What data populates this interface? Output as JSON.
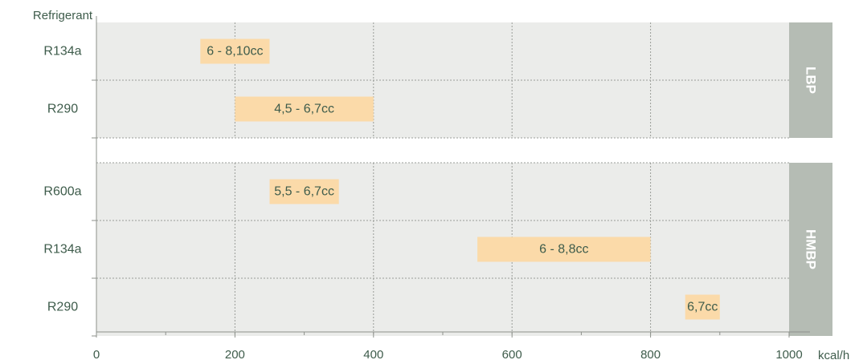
{
  "chart_data": {
    "type": "bar",
    "orientation": "horizontal-range",
    "ylabel": "Refrigerant",
    "xunit": "kcal/h",
    "xlim": [
      0,
      1000
    ],
    "xticks": [
      "0",
      "200",
      "400",
      "600",
      "800",
      "1000"
    ],
    "groups": [
      {
        "name": "LBP",
        "rows": [
          {
            "category": "R134a",
            "start": 150,
            "end": 250,
            "label": "6 - 8,10cc"
          },
          {
            "category": "R290",
            "start": 200,
            "end": 400,
            "label": "4,5 - 6,7cc"
          }
        ]
      },
      {
        "name": "HMBP",
        "rows": [
          {
            "category": "R600a",
            "start": 250,
            "end": 350,
            "label": "5,5 - 6,7cc"
          },
          {
            "category": "R134a",
            "start": 550,
            "end": 800,
            "label": "6 - 8,8cc"
          },
          {
            "category": "R290",
            "start": 850,
            "end": 900,
            "label": "6,7cc"
          }
        ]
      }
    ],
    "grid": true,
    "colors": {
      "plot_background": "#ebecea",
      "bar": "#fbdaa9",
      "group_band": "#b5bcb4",
      "text": "#3e5c4b",
      "axis": "#8d918b",
      "grid": "#9a9d98"
    }
  }
}
